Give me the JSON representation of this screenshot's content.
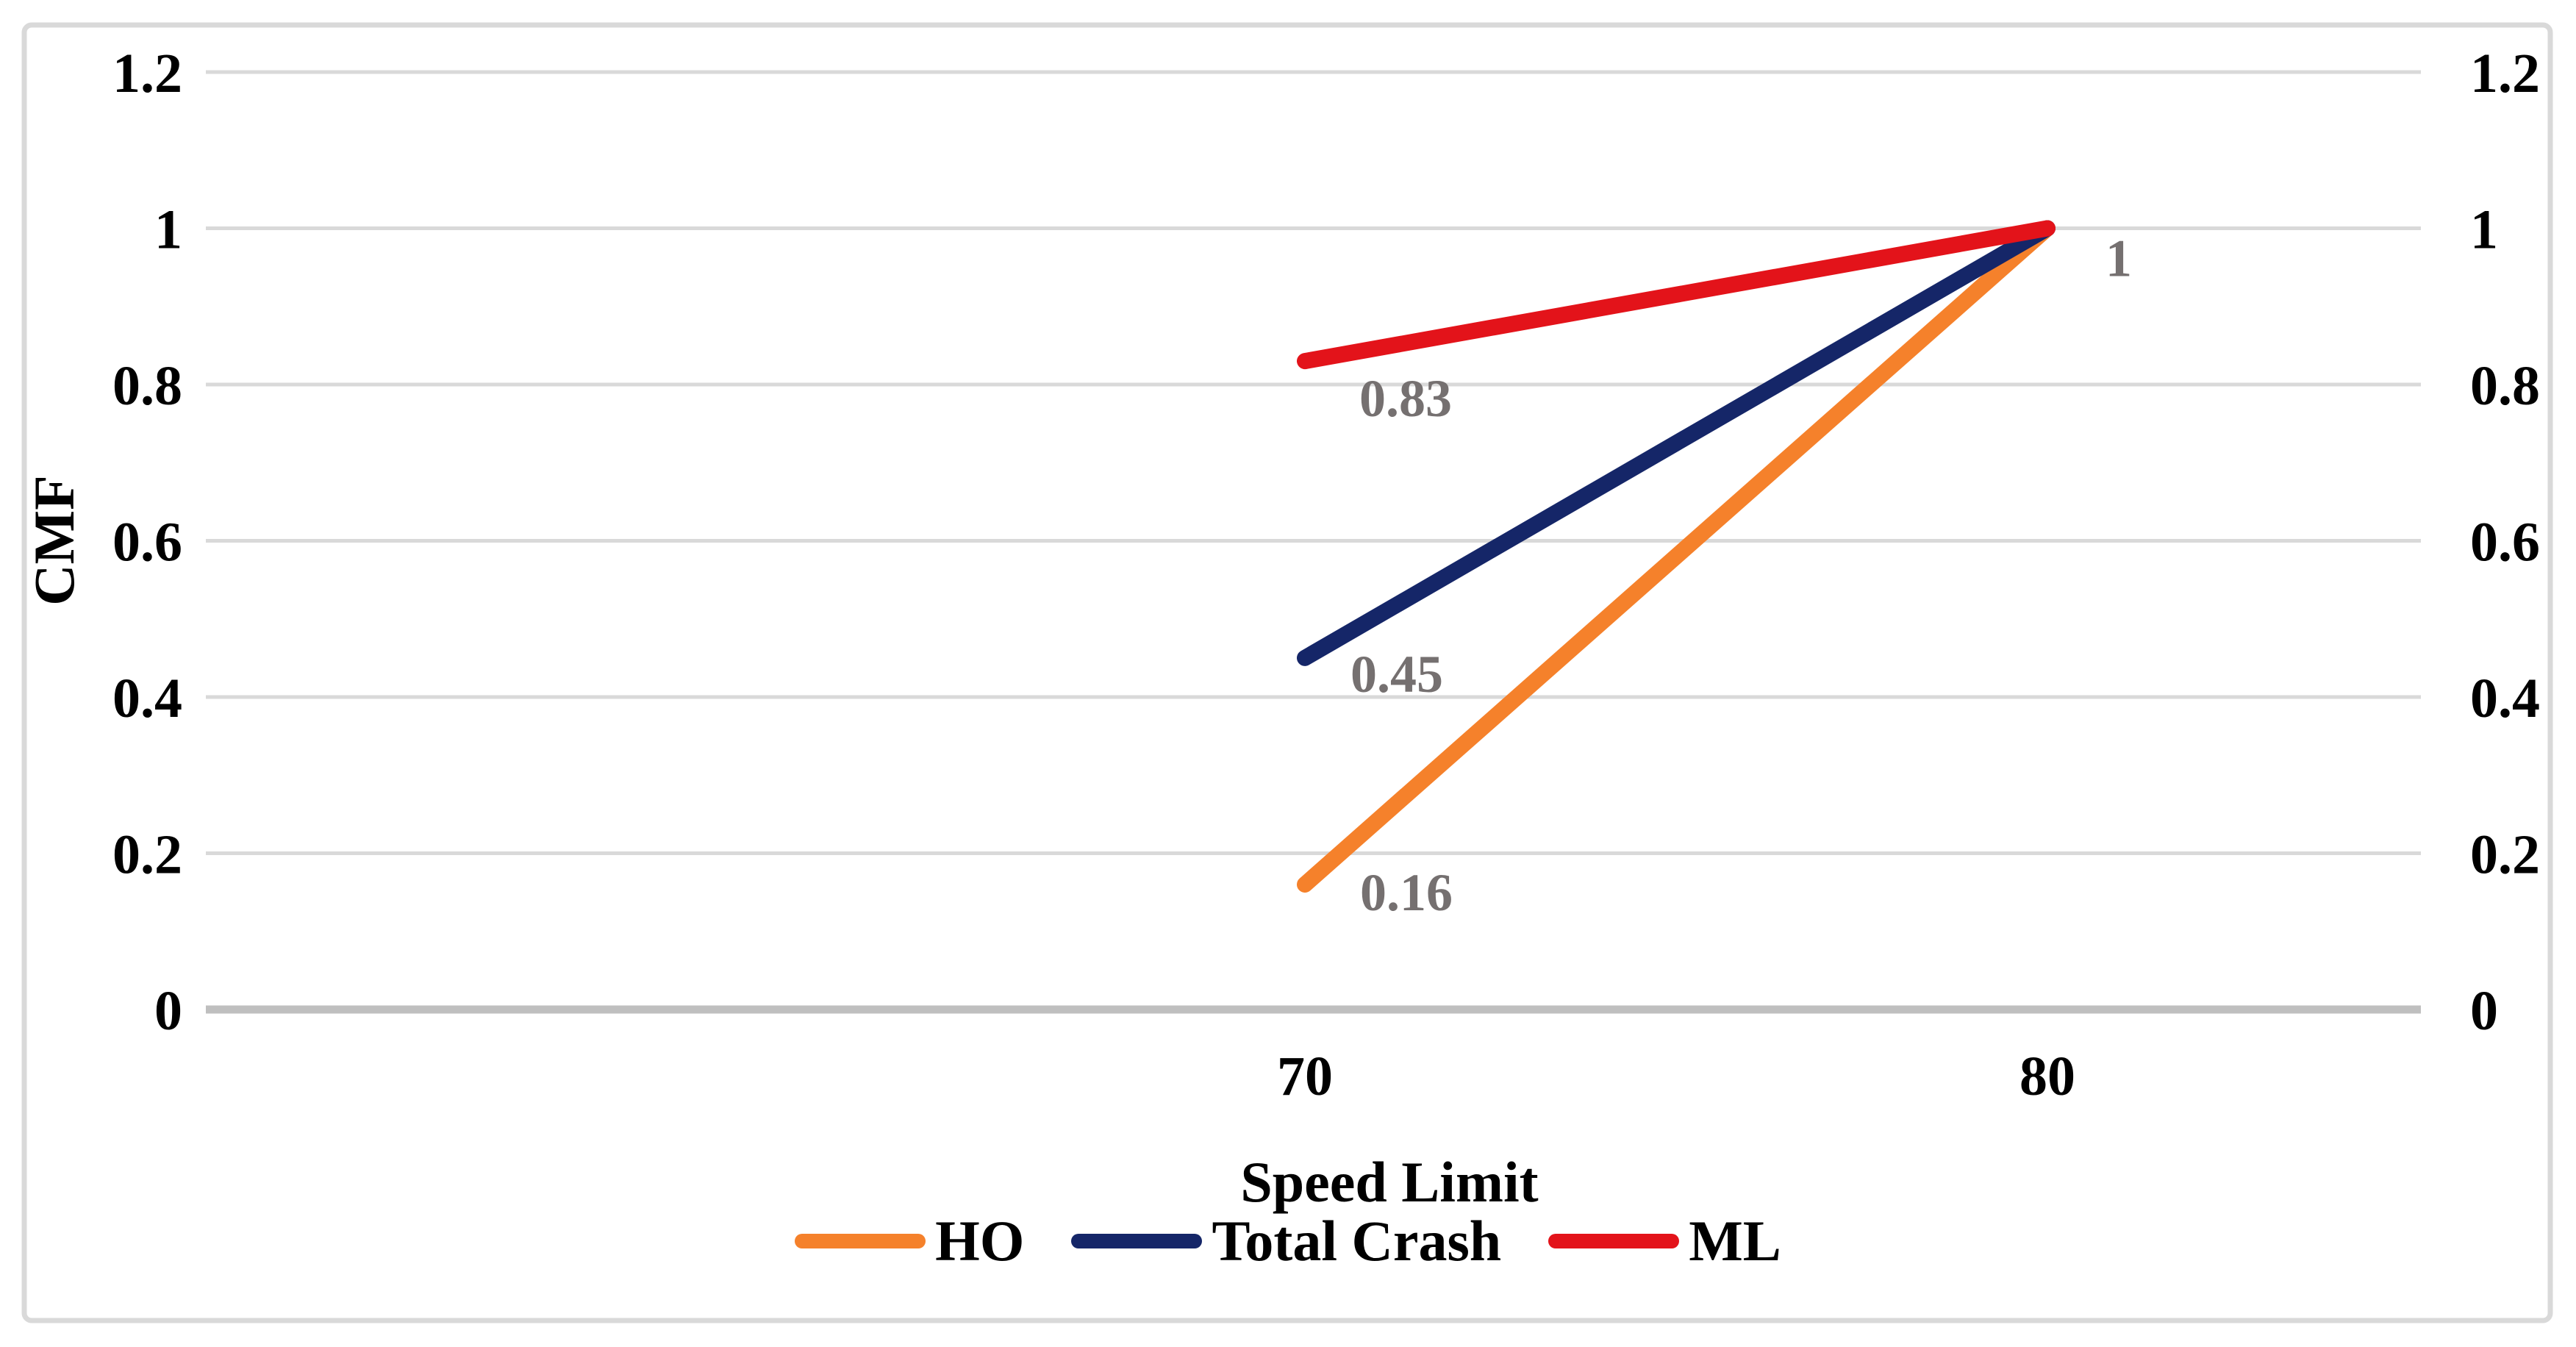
{
  "chart_data": {
    "type": "line",
    "title": "",
    "xlabel": "Speed Limit",
    "ylabel": "CMF",
    "categories": [
      "70",
      "80"
    ],
    "series": [
      {
        "name": "HO",
        "color": "#F5812B",
        "values": [
          0.16,
          1
        ],
        "point_labels": [
          "0.16",
          ""
        ]
      },
      {
        "name": "Total Crash",
        "color": "#152668",
        "values": [
          0.45,
          1
        ],
        "point_labels": [
          "0.45",
          ""
        ]
      },
      {
        "name": "ML",
        "color": "#E3131A",
        "values": [
          0.83,
          1
        ],
        "point_labels": [
          "0.83",
          "1"
        ]
      }
    ],
    "ylim": [
      0,
      1.2
    ],
    "yticks": [
      "0",
      "0.2",
      "0.4",
      "0.6",
      "0.8",
      "1",
      "1.2"
    ],
    "axes": {
      "left_ticks_shown": true,
      "right_ticks_shown": true,
      "dual_axis": true
    },
    "grid": true,
    "legend_position": "bottom",
    "styles": {
      "gridline_color": "#D9D9D9",
      "baseline_color": "#BFBFBF",
      "data_label_color": "#757070",
      "tick_color": "#000000",
      "border_color": "#D9D9D9",
      "background": "#FFFFFF"
    }
  }
}
